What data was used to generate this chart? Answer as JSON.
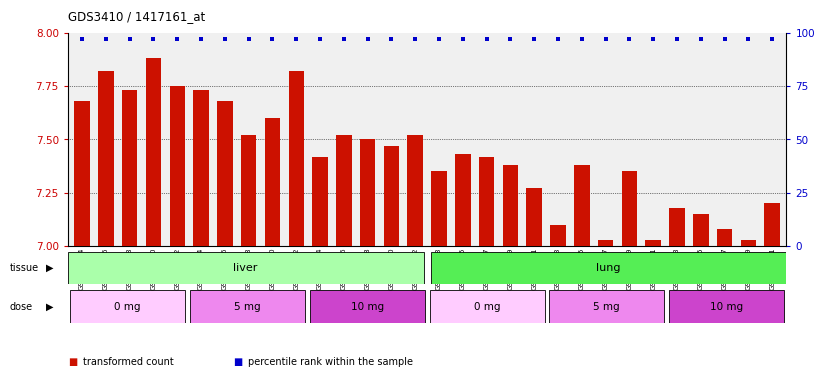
{
  "title": "GDS3410 / 1417161_at",
  "samples": [
    "GSM326944",
    "GSM326946",
    "GSM326948",
    "GSM326950",
    "GSM326952",
    "GSM326954",
    "GSM326956",
    "GSM326958",
    "GSM326960",
    "GSM326962",
    "GSM326964",
    "GSM326966",
    "GSM326968",
    "GSM326970",
    "GSM326972",
    "GSM326943",
    "GSM326945",
    "GSM326947",
    "GSM326949",
    "GSM326951",
    "GSM326953",
    "GSM326955",
    "GSM326957",
    "GSM326959",
    "GSM326961",
    "GSM326963",
    "GSM326965",
    "GSM326967",
    "GSM326969",
    "GSM326971"
  ],
  "bar_values": [
    7.68,
    7.82,
    7.73,
    7.88,
    7.75,
    7.73,
    7.68,
    7.52,
    7.6,
    7.82,
    7.42,
    7.52,
    7.5,
    7.47,
    7.52,
    7.35,
    7.43,
    7.42,
    7.38,
    7.27,
    7.1,
    7.38,
    7.03,
    7.35,
    7.03,
    7.18,
    7.15,
    7.08,
    7.03,
    7.2
  ],
  "percentile_values": [
    97,
    97,
    97,
    97,
    97,
    97,
    97,
    97,
    97,
    97,
    97,
    97,
    97,
    97,
    97,
    97,
    97,
    97,
    97,
    97,
    97,
    97,
    97,
    97,
    97,
    97,
    97,
    97,
    97,
    97
  ],
  "tissue_groups": [
    {
      "label": "liver",
      "start": 0,
      "end": 15,
      "color": "#aaffaa"
    },
    {
      "label": "lung",
      "start": 15,
      "end": 30,
      "color": "#55ee55"
    }
  ],
  "dose_groups": [
    {
      "label": "0 mg",
      "start": 0,
      "end": 5,
      "color": "#ffccff"
    },
    {
      "label": "5 mg",
      "start": 5,
      "end": 10,
      "color": "#ee88ee"
    },
    {
      "label": "10 mg",
      "start": 10,
      "end": 15,
      "color": "#cc44cc"
    },
    {
      "label": "0 mg",
      "start": 15,
      "end": 20,
      "color": "#ffccff"
    },
    {
      "label": "5 mg",
      "start": 20,
      "end": 25,
      "color": "#ee88ee"
    },
    {
      "label": "10 mg",
      "start": 25,
      "end": 30,
      "color": "#cc44cc"
    }
  ],
  "bar_color": "#cc1100",
  "dot_color": "#0000cc",
  "ylim_left": [
    7.0,
    8.0
  ],
  "ylim_right": [
    0,
    100
  ],
  "yticks_left": [
    7.0,
    7.25,
    7.5,
    7.75,
    8.0
  ],
  "yticks_right": [
    0,
    25,
    50,
    75,
    100
  ],
  "grid_values": [
    7.25,
    7.5,
    7.75
  ],
  "legend_items": [
    {
      "label": "transformed count",
      "color": "#cc1100"
    },
    {
      "label": "percentile rank within the sample",
      "color": "#0000cc"
    }
  ],
  "tissue_label": "tissue",
  "dose_label": "dose",
  "bg_color": "#ffffff",
  "plot_bg": "#f0f0f0"
}
